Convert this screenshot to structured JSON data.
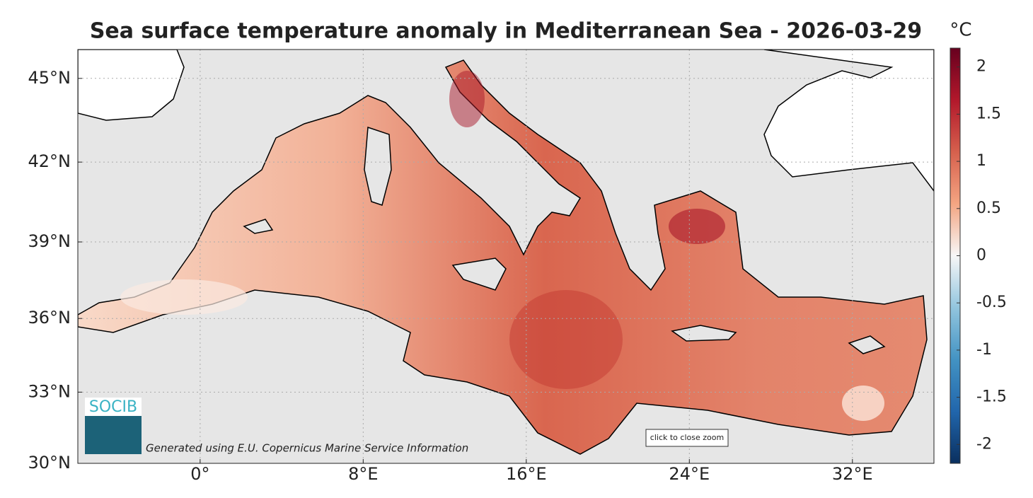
{
  "chart_data": {
    "type": "map",
    "title": "Sea surface temperature anomaly in Mediterranean Sea - 2026-03-29",
    "projection": "mercator",
    "xlim": [
      -6,
      36
    ],
    "xticks": [
      {
        "value": 0,
        "label": "0°"
      },
      {
        "value": 8,
        "label": "8°E"
      },
      {
        "value": 16,
        "label": "16°E"
      },
      {
        "value": 24,
        "label": "24°E"
      },
      {
        "value": 32,
        "label": "32°E"
      }
    ],
    "ylim": [
      30,
      46
    ],
    "yticks": [
      {
        "value": 30,
        "label": "30°N"
      },
      {
        "value": 33,
        "label": "33°N"
      },
      {
        "value": 36,
        "label": "36°N"
      },
      {
        "value": 39,
        "label": "39°N"
      },
      {
        "value": 42,
        "label": "42°N"
      },
      {
        "value": 45,
        "label": "45°N"
      }
    ],
    "grid": true,
    "colorbar": {
      "label": "°C",
      "lim": [
        -2.2,
        2.2
      ],
      "ticks": [
        -2,
        -1.5,
        -1,
        -0.5,
        0,
        0.5,
        1,
        1.5,
        2
      ],
      "colors": [
        "#0a2f5e",
        "#2166ac",
        "#4393c3",
        "#92c5de",
        "#f7f7f7",
        "#f4a582",
        "#d6604d",
        "#b2182b",
        "#67001f"
      ]
    },
    "logo": "SOCIB",
    "credit": "Generated using E.U. Copernicus Marine Service Information",
    "button": "click to close zoom"
  }
}
